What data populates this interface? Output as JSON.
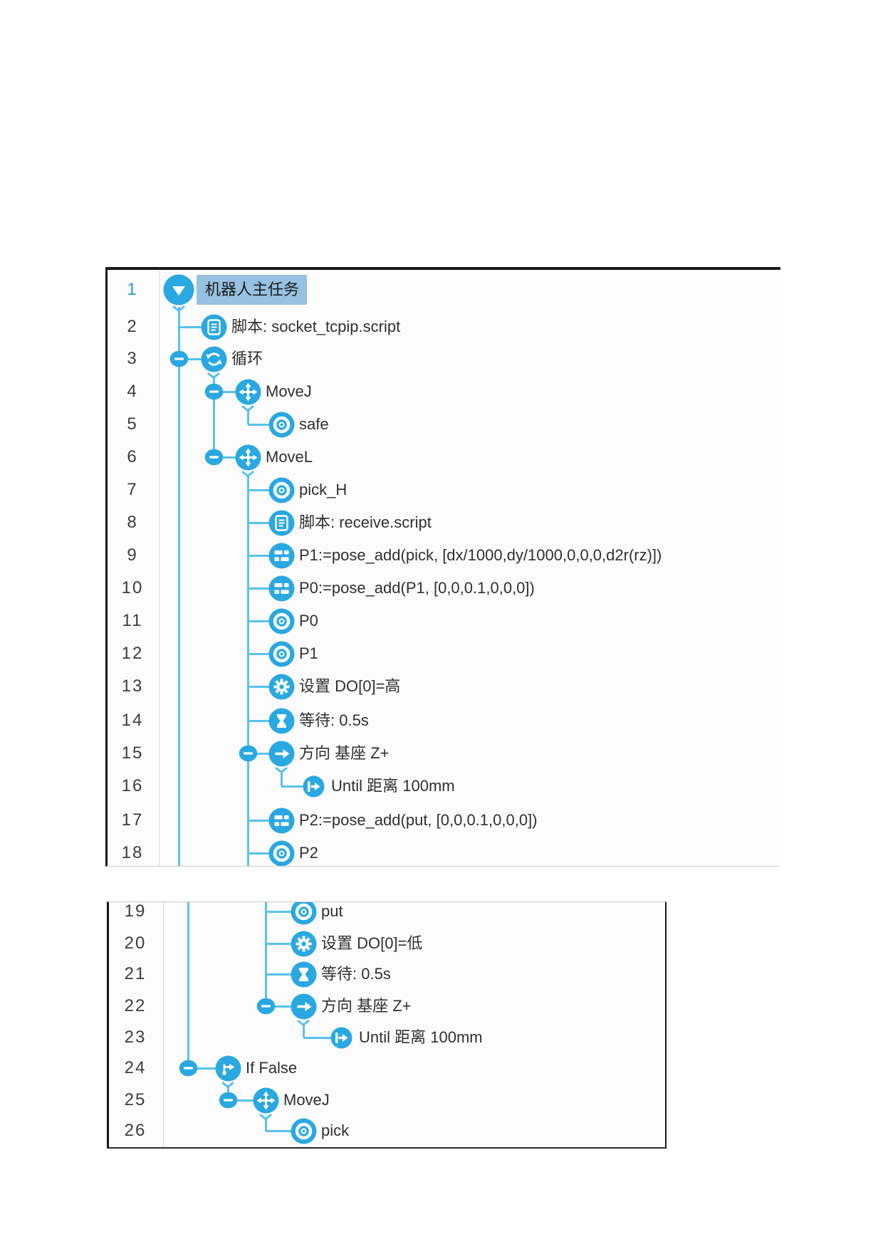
{
  "app": "robot-program-tree",
  "colors": {
    "icon_blue": "#2aa8e2",
    "line_cyan": "#58c2ed",
    "selected_highlight": "#97c1e0",
    "line_number_selected": "#2a9ad3"
  },
  "panels": [
    {
      "name": "program-tree-lines-1-18",
      "rows": [
        {
          "n": "1",
          "label": "机器人主任务",
          "icon": "task-root",
          "level": 0,
          "minus": false,
          "chevron": true,
          "selected": true
        },
        {
          "n": "2",
          "label": "脚本: socket_tcpip.script",
          "icon": "script",
          "level": 1,
          "minus": false,
          "chevron": false
        },
        {
          "n": "3",
          "label": "循环",
          "icon": "loop",
          "level": 1,
          "minus": true,
          "chevron": true
        },
        {
          "n": "4",
          "label": "MoveJ",
          "icon": "move",
          "level": 2,
          "minus": true,
          "chevron": true
        },
        {
          "n": "5",
          "label": "safe",
          "icon": "waypoint",
          "level": 3,
          "minus": false,
          "chevron": false
        },
        {
          "n": "6",
          "label": "MoveL",
          "icon": "move",
          "level": 2,
          "minus": true,
          "chevron": true
        },
        {
          "n": "7",
          "label": "pick_H",
          "icon": "waypoint",
          "level": 3,
          "minus": false,
          "chevron": false
        },
        {
          "n": "8",
          "label": "脚本: receive.script",
          "icon": "script",
          "level": 3,
          "minus": false,
          "chevron": false
        },
        {
          "n": "9",
          "label": "P1:=pose_add(pick, [dx/1000,dy/1000,0,0,0,d2r(rz)])",
          "icon": "assign",
          "level": 3,
          "minus": false,
          "chevron": false
        },
        {
          "n": "10",
          "label": "P0:=pose_add(P1, [0,0,0.1,0,0,0])",
          "icon": "assign",
          "level": 3,
          "minus": false,
          "chevron": false
        },
        {
          "n": "11",
          "label": "P0",
          "icon": "waypoint",
          "level": 3,
          "minus": false,
          "chevron": false
        },
        {
          "n": "12",
          "label": "P1",
          "icon": "waypoint",
          "level": 3,
          "minus": false,
          "chevron": false
        },
        {
          "n": "13",
          "label": "设置 DO[0]=高",
          "icon": "set",
          "level": 3,
          "minus": false,
          "chevron": false
        },
        {
          "n": "14",
          "label": "等待: 0.5s",
          "icon": "wait",
          "level": 3,
          "minus": false,
          "chevron": false
        },
        {
          "n": "15",
          "label": "方向 基座 Z+",
          "icon": "direction",
          "level": 3,
          "minus": true,
          "chevron": true
        },
        {
          "n": "16",
          "label": "Until 距离 100mm",
          "icon": "until",
          "level": 4,
          "minus": false,
          "chevron": false
        },
        {
          "n": "17",
          "label": "P2:=pose_add(put, [0,0,0.1,0,0,0])",
          "icon": "assign",
          "level": 3,
          "minus": false,
          "chevron": false
        },
        {
          "n": "18",
          "label": "P2",
          "icon": "waypoint",
          "level": 3,
          "minus": false,
          "chevron": false
        }
      ]
    },
    {
      "name": "program-tree-lines-19-26",
      "rows": [
        {
          "n": "19",
          "label": "put",
          "icon": "waypoint",
          "level": 3,
          "minus": false,
          "chevron": false
        },
        {
          "n": "20",
          "label": "设置 DO[0]=低",
          "icon": "set",
          "level": 3,
          "minus": false,
          "chevron": false
        },
        {
          "n": "21",
          "label": "等待: 0.5s",
          "icon": "wait",
          "level": 3,
          "minus": false,
          "chevron": false
        },
        {
          "n": "22",
          "label": "方向 基座 Z+",
          "icon": "direction",
          "level": 3,
          "minus": true,
          "chevron": true
        },
        {
          "n": "23",
          "label": "Until 距离 100mm",
          "icon": "until",
          "level": 4,
          "minus": false,
          "chevron": false
        },
        {
          "n": "24",
          "label": "If  False",
          "icon": "if-branch",
          "level": 1,
          "minus": true,
          "chevron": true
        },
        {
          "n": "25",
          "label": "MoveJ",
          "icon": "move",
          "level": 2,
          "minus": true,
          "chevron": true
        },
        {
          "n": "26",
          "label": "pick",
          "icon": "waypoint",
          "level": 3,
          "minus": false,
          "chevron": false
        }
      ]
    }
  ]
}
